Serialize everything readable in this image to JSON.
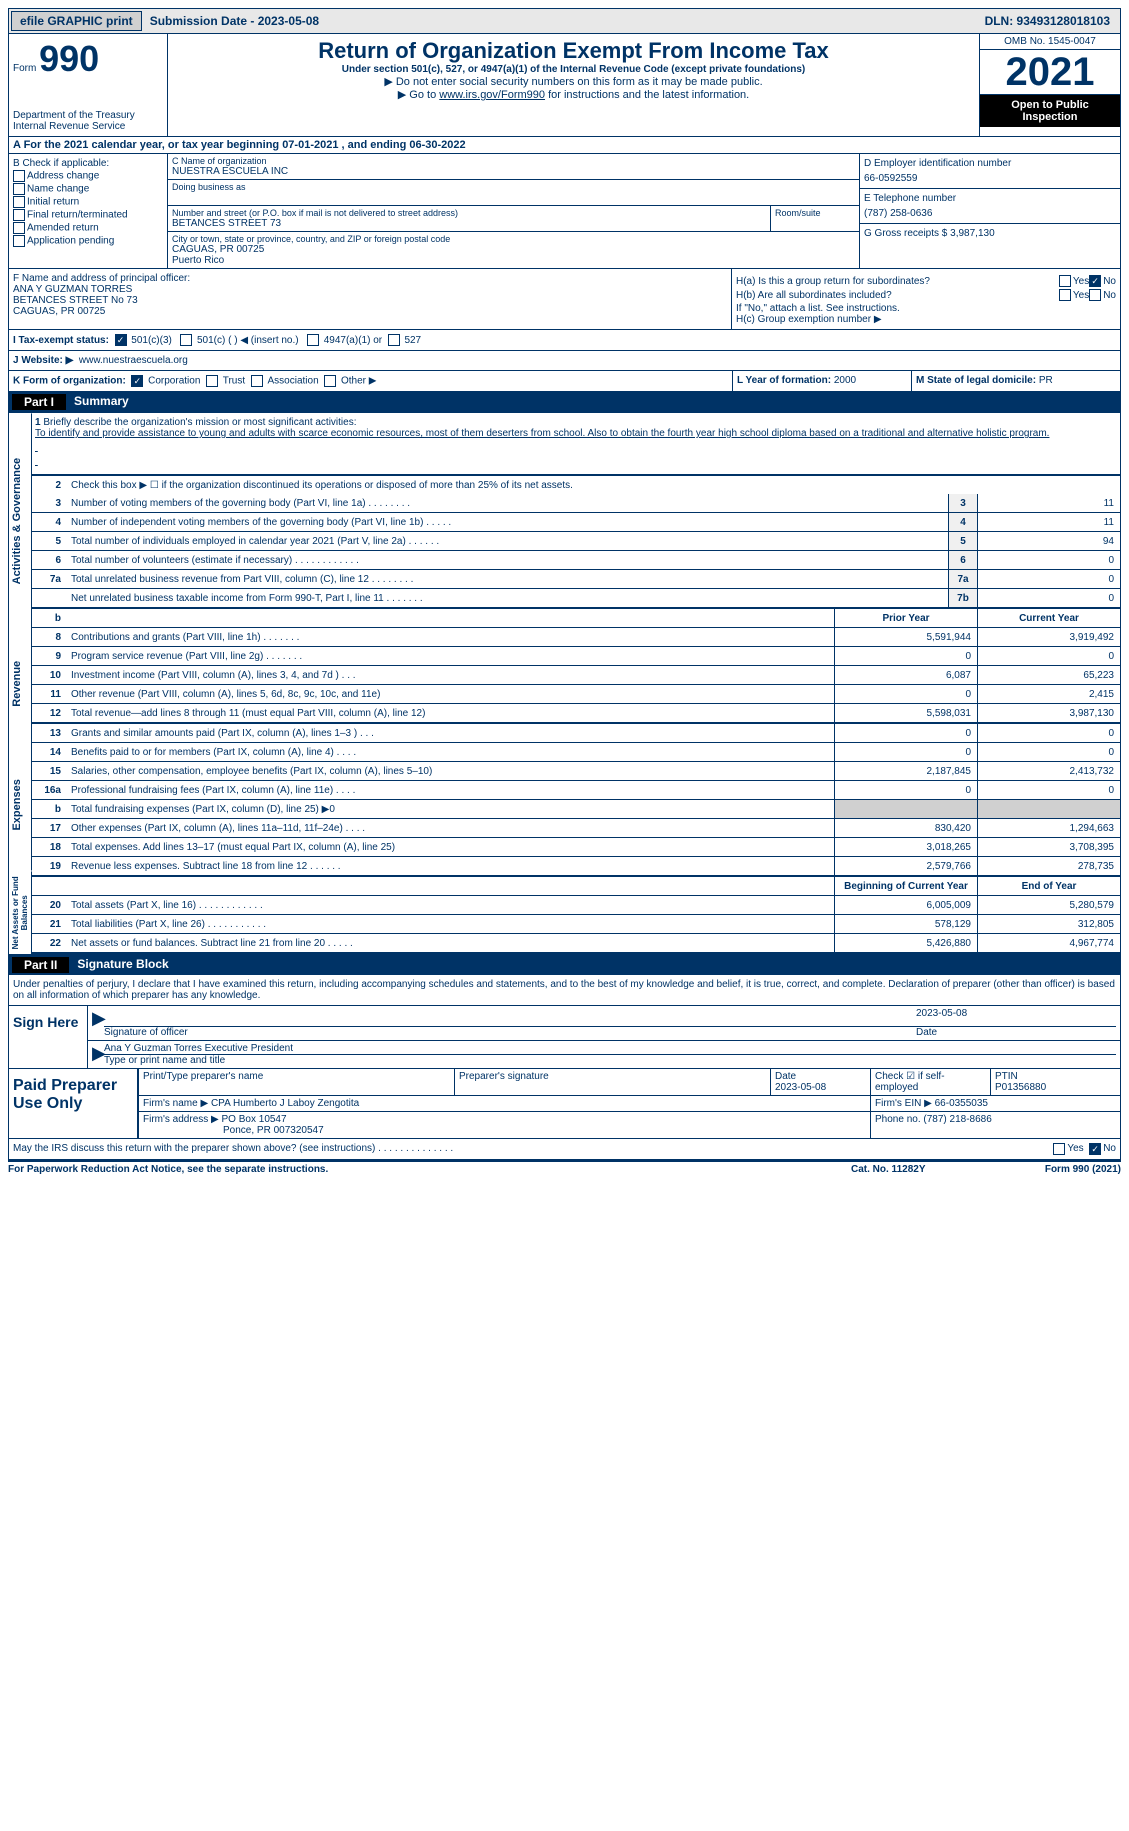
{
  "top": {
    "efile": "efile GRAPHIC print",
    "sub_date": "Submission Date - 2023-05-08",
    "dln": "DLN: 93493128018103"
  },
  "header": {
    "form_word": "Form",
    "form_num": "990",
    "dept": "Department of the Treasury",
    "irs": "Internal Revenue Service",
    "title": "Return of Organization Exempt From Income Tax",
    "subtitle": "Under section 501(c), 527, or 4947(a)(1) of the Internal Revenue Code (except private foundations)",
    "note1": "▶ Do not enter social security numbers on this form as it may be made public.",
    "note2_prefix": "▶ Go to ",
    "note2_link": "www.irs.gov/Form990",
    "note2_suffix": " for instructions and the latest information.",
    "omb": "OMB No. 1545-0047",
    "year": "2021",
    "inspect": "Open to Public Inspection"
  },
  "rowA": "A For the 2021 calendar year, or tax year beginning 07-01-2021   , and ending 06-30-2022",
  "B": {
    "lbl": "B Check if applicable:",
    "opts": [
      "Address change",
      "Name change",
      "Initial return",
      "Final return/terminated",
      "Amended return",
      "Application pending"
    ]
  },
  "C": {
    "name_lbl": "C Name of organization",
    "name": "NUESTRA ESCUELA INC",
    "dba_lbl": "Doing business as",
    "street_lbl": "Number and street (or P.O. box if mail is not delivered to street address)",
    "street": "BETANCES STREET 73",
    "room_lbl": "Room/suite",
    "city_lbl": "City or town, state or province, country, and ZIP or foreign postal code",
    "city": "CAGUAS, PR  00725",
    "country": "Puerto Rico"
  },
  "D": {
    "ein_lbl": "D Employer identification number",
    "ein": "66-0592559",
    "phone_lbl": "E Telephone number",
    "phone": "(787) 258-0636",
    "gross_lbl": "G Gross receipts $",
    "gross": "3,987,130"
  },
  "F": {
    "lbl": "F  Name and address of principal officer:",
    "name": "ANA Y GUZMAN TORRES",
    "street": "BETANCES STREET No 73",
    "city": "CAGUAS, PR  00725"
  },
  "H": {
    "a_lbl": "H(a)  Is this a group return for subordinates?",
    "b_lbl": "H(b)  Are all subordinates included?",
    "note": "If \"No,\" attach a list. See instructions.",
    "c_lbl": "H(c)  Group exemption number ▶",
    "yes": "Yes",
    "no": "No"
  },
  "I": {
    "lbl": "I  Tax-exempt status:",
    "o1": "501(c)(3)",
    "o2": "501(c) (   ) ◀ (insert no.)",
    "o3": "4947(a)(1) or",
    "o4": "527"
  },
  "J": {
    "lbl": "J  Website: ▶",
    "val": "www.nuestraescuela.org"
  },
  "K": {
    "lbl": "K Form of organization:",
    "o1": "Corporation",
    "o2": "Trust",
    "o3": "Association",
    "o4": "Other ▶"
  },
  "L": {
    "lbl": "L Year of formation:",
    "val": "2000"
  },
  "M": {
    "lbl": "M State of legal domicile:",
    "val": "PR"
  },
  "part1": {
    "num": "Part I",
    "title": "Summary"
  },
  "mission": {
    "num": "1",
    "lbl": "Briefly describe the organization's mission or most significant activities:",
    "text": "To identify and provide assistance to young and adults with scarce economic resources, most of them deserters from school. Also to obtain the fourth year high school diploma based on a traditional and alternative holistic program."
  },
  "line2": {
    "num": "2",
    "desc": "Check this box ▶ ☐ if the organization discontinued its operations or disposed of more than 25% of its net assets."
  },
  "lines_gov": [
    {
      "num": "3",
      "desc": "Number of voting members of the governing body (Part VI, line 1a)   .    .    .    .    .    .    .    .",
      "box": "3",
      "val": "11"
    },
    {
      "num": "4",
      "desc": "Number of independent voting members of the governing body (Part VI, line 1b)   .    .    .    .    .",
      "box": "4",
      "val": "11"
    },
    {
      "num": "5",
      "desc": "Total number of individuals employed in calendar year 2021 (Part V, line 2a)   .    .    .    .    .    .",
      "box": "5",
      "val": "94"
    },
    {
      "num": "6",
      "desc": "Total number of volunteers (estimate if necessary)   .    .    .    .    .    .    .    .    .    .    .    .",
      "box": "6",
      "val": "0"
    },
    {
      "num": "7a",
      "desc": "Total unrelated business revenue from Part VIII, column (C), line 12   .    .    .    .    .    .    .    .",
      "box": "7a",
      "val": "0"
    },
    {
      "num": "",
      "desc": "Net unrelated business taxable income from Form 990-T, Part I, line 11   .    .    .    .    .    .    .",
      "box": "7b",
      "val": "0"
    }
  ],
  "col_hdr": {
    "prior": "Prior Year",
    "current": "Current Year",
    "b": "b"
  },
  "rev": [
    {
      "num": "8",
      "desc": "Contributions and grants (Part VIII, line 1h)   .    .    .    .    .    .    .",
      "p": "5,591,944",
      "c": "3,919,492"
    },
    {
      "num": "9",
      "desc": "Program service revenue (Part VIII, line 2g)   .    .    .    .    .    .    .",
      "p": "0",
      "c": "0"
    },
    {
      "num": "10",
      "desc": "Investment income (Part VIII, column (A), lines 3, 4, and 7d )   .    .    .",
      "p": "6,087",
      "c": "65,223"
    },
    {
      "num": "11",
      "desc": "Other revenue (Part VIII, column (A), lines 5, 6d, 8c, 9c, 10c, and 11e)",
      "p": "0",
      "c": "2,415"
    },
    {
      "num": "12",
      "desc": "Total revenue—add lines 8 through 11 (must equal Part VIII, column (A), line 12)",
      "p": "5,598,031",
      "c": "3,987,130"
    }
  ],
  "exp": [
    {
      "num": "13",
      "desc": "Grants and similar amounts paid (Part IX, column (A), lines 1–3 )   .    .    .",
      "p": "0",
      "c": "0"
    },
    {
      "num": "14",
      "desc": "Benefits paid to or for members (Part IX, column (A), line 4)   .    .    .    .",
      "p": "0",
      "c": "0"
    },
    {
      "num": "15",
      "desc": "Salaries, other compensation, employee benefits (Part IX, column (A), lines 5–10)",
      "p": "2,187,845",
      "c": "2,413,732"
    },
    {
      "num": "16a",
      "desc": "Professional fundraising fees (Part IX, column (A), line 11e)   .    .    .    .",
      "p": "0",
      "c": "0"
    },
    {
      "num": "b",
      "desc": "Total fundraising expenses (Part IX, column (D), line 25) ▶0",
      "p": "",
      "c": "",
      "shade": true
    },
    {
      "num": "17",
      "desc": "Other expenses (Part IX, column (A), lines 11a–11d, 11f–24e)   .    .    .    .",
      "p": "830,420",
      "c": "1,294,663"
    },
    {
      "num": "18",
      "desc": "Total expenses. Add lines 13–17 (must equal Part IX, column (A), line 25)",
      "p": "3,018,265",
      "c": "3,708,395"
    },
    {
      "num": "19",
      "desc": "Revenue less expenses. Subtract line 18 from line 12   .    .    .    .    .    .",
      "p": "2,579,766",
      "c": "278,735"
    }
  ],
  "net_hdr": {
    "begin": "Beginning of Current Year",
    "end": "End of Year"
  },
  "net": [
    {
      "num": "20",
      "desc": "Total assets (Part X, line 16)   .    .    .    .    .    .    .    .    .    .    .    .",
      "p": "6,005,009",
      "c": "5,280,579"
    },
    {
      "num": "21",
      "desc": "Total liabilities (Part X, line 26)   .    .    .    .    .    .    .    .    .    .    .",
      "p": "578,129",
      "c": "312,805"
    },
    {
      "num": "22",
      "desc": "Net assets or fund balances. Subtract line 21 from line 20   .    .    .    .    .",
      "p": "5,426,880",
      "c": "4,967,774"
    }
  ],
  "vlabels": {
    "gov": "Activities & Governance",
    "rev": "Revenue",
    "exp": "Expenses",
    "net": "Net Assets or Fund Balances"
  },
  "part2": {
    "num": "Part II",
    "title": "Signature Block"
  },
  "sig": {
    "penalty": "Under penalties of perjury, I declare that I have examined this return, including accompanying schedules and statements, and to the best of my knowledge and belief, it is true, correct, and complete. Declaration of preparer (other than officer) is based on all information of which preparer has any knowledge.",
    "sign_here": "Sign Here",
    "sig_officer": "Signature of officer",
    "sig_date": "2023-05-08",
    "date_lbl": "Date",
    "name": "Ana Y Guzman Torres  Executive President",
    "name_lbl": "Type or print name and title"
  },
  "paid": {
    "lbl": "Paid Preparer Use Only",
    "h1": "Print/Type preparer's name",
    "h2": "Preparer's signature",
    "h3": "Date",
    "h3v": "2023-05-08",
    "h4": "Check ☑ if self-employed",
    "h5": "PTIN",
    "h5v": "P01356880",
    "firm_lbl": "Firm's name      ▶",
    "firm": "CPA Humberto J Laboy Zengotita",
    "ein_lbl": "Firm's EIN ▶",
    "ein": "66-0355035",
    "addr_lbl": "Firm's address ▶",
    "addr": "PO Box 10547",
    "addr2": "Ponce, PR  007320547",
    "phone_lbl": "Phone no.",
    "phone": "(787) 218-8686"
  },
  "may": {
    "text": "May the IRS discuss this return with the preparer shown above? (see instructions)   .    .    .    .    .    .    .    .    .    .    .    .    .    .",
    "yes": "Yes",
    "no": "No"
  },
  "footer": {
    "f1": "For Paperwork Reduction Act Notice, see the separate instructions.",
    "f2": "Cat. No. 11282Y",
    "f3": "Form 990 (2021)"
  }
}
